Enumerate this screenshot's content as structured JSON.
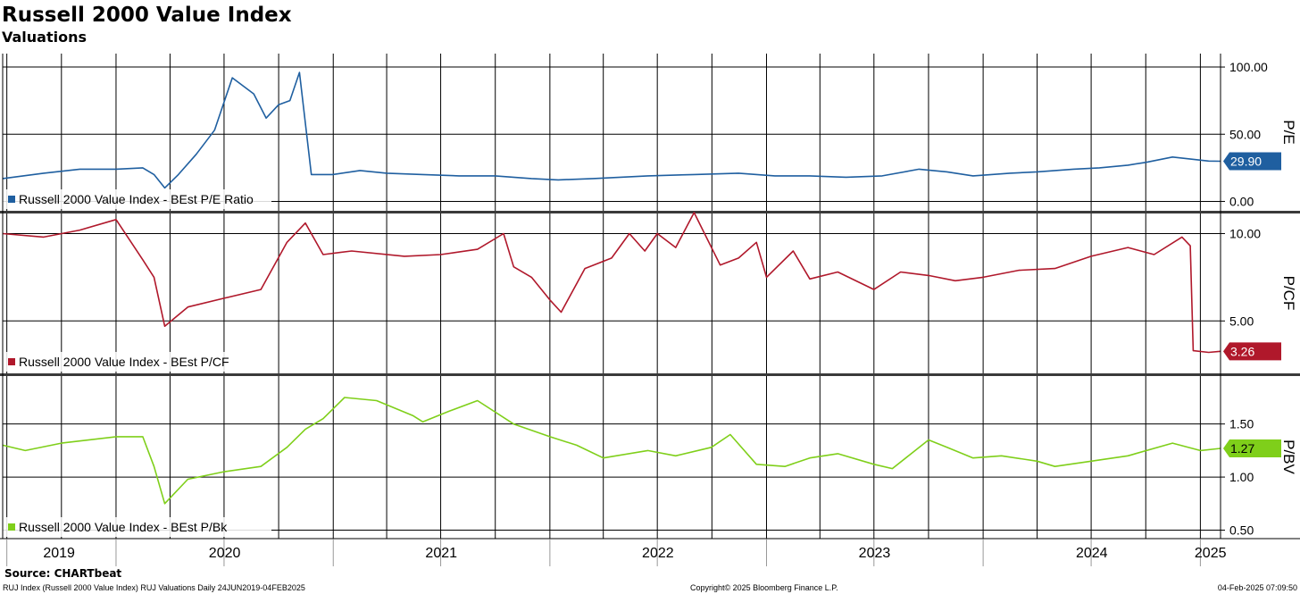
{
  "header": {
    "title": "Russell 2000 Value Index",
    "subtitle": "Valuations"
  },
  "footer": {
    "source": "Source: CHARTbeat",
    "left": "RUJ Index (Russell 2000 Value Index) RUJ Valuations  Daily 24JUN2019-04FEB2025",
    "center": "Copyright© 2025 Bloomberg Finance L.P.",
    "right": "04-Feb-2025 07:09:50"
  },
  "colors": {
    "pe": "#1f5fa0",
    "pcf": "#b0182b",
    "pbv": "#7fcf1a"
  },
  "chart_data": [
    {
      "type": "line",
      "ylabel": "P/E",
      "ylim": [
        -7,
        110
      ],
      "yticks": [
        "100.00",
        "50.00",
        "0.00"
      ],
      "ytick_values": [
        100,
        50,
        0
      ],
      "x_range": [
        "2019-06-24",
        "2025-02-04"
      ],
      "x_tick_labels": [
        "2019",
        "2020",
        "2021",
        "2022",
        "2023",
        "2024",
        "2025"
      ],
      "grid": true,
      "legend_position": "bottom-left",
      "series": [
        {
          "name": "Russell 2000 Value Index - BEst P/E Ratio",
          "last_value_label": "29.90",
          "x": [
            "2019-06-24",
            "2019-09-01",
            "2019-11-01",
            "2020-01-01",
            "2020-02-15",
            "2020-03-05",
            "2020-03-23",
            "2020-04-15",
            "2020-05-15",
            "2020-06-08",
            "2020-06-15",
            "2020-07-15",
            "2020-08-20",
            "2020-09-10",
            "2020-10-01",
            "2020-10-20",
            "2020-11-05",
            "2020-11-25",
            "2020-12-31",
            "2021-02-15",
            "2021-04-01",
            "2021-06-01",
            "2021-08-01",
            "2021-10-01",
            "2021-12-01",
            "2022-01-15",
            "2022-03-15",
            "2022-06-15",
            "2022-09-01",
            "2022-11-15",
            "2023-01-15",
            "2023-03-15",
            "2023-05-15",
            "2023-07-15",
            "2023-09-15",
            "2023-11-01",
            "2023-12-15",
            "2024-02-15",
            "2024-04-01",
            "2024-06-01",
            "2024-07-15",
            "2024-09-01",
            "2024-10-01",
            "2024-11-15",
            "2025-01-15",
            "2025-02-04"
          ],
          "values": [
            17,
            21,
            24,
            24,
            25,
            20,
            10,
            20,
            35,
            49,
            53,
            92,
            80,
            62,
            72,
            75,
            96,
            20,
            20,
            23,
            21,
            20,
            19,
            19,
            17,
            16,
            17,
            19,
            20,
            21,
            19,
            19,
            18,
            19,
            24,
            22,
            19,
            21,
            22,
            24,
            25,
            27,
            29,
            33,
            30,
            29.9
          ]
        }
      ]
    },
    {
      "type": "line",
      "ylabel": "P/CF",
      "ylim": [
        2,
        11.2
      ],
      "yticks": [
        "10.00",
        "5.00"
      ],
      "ytick_values": [
        10,
        5
      ],
      "x_range": [
        "2019-06-24",
        "2025-02-04"
      ],
      "x_tick_labels": [
        "2019",
        "2020",
        "2021",
        "2022",
        "2023",
        "2024",
        "2025"
      ],
      "grid": true,
      "legend_position": "bottom-left",
      "series": [
        {
          "name": "Russell 2000 Value Index - BEst P/CF",
          "last_value_label": "3.26",
          "x": [
            "2019-06-24",
            "2019-09-01",
            "2019-11-01",
            "2020-01-01",
            "2020-02-15",
            "2020-03-05",
            "2020-03-23",
            "2020-05-01",
            "2020-07-01",
            "2020-09-01",
            "2020-10-15",
            "2020-11-15",
            "2020-12-15",
            "2021-02-01",
            "2021-05-01",
            "2021-07-01",
            "2021-09-01",
            "2021-10-15",
            "2021-11-01",
            "2021-12-01",
            "2022-01-01",
            "2022-01-20",
            "2022-03-01",
            "2022-04-15",
            "2022-05-15",
            "2022-06-10",
            "2022-07-01",
            "2022-08-01",
            "2022-09-01",
            "2022-10-15",
            "2022-11-15",
            "2022-12-15",
            "2023-01-01",
            "2023-02-15",
            "2023-03-15",
            "2023-05-01",
            "2023-07-01",
            "2023-08-15",
            "2023-10-01",
            "2023-11-15",
            "2024-01-01",
            "2024-03-01",
            "2024-05-01",
            "2024-07-01",
            "2024-09-01",
            "2024-10-15",
            "2024-12-01",
            "2024-12-15",
            "2024-12-20",
            "2025-01-15",
            "2025-02-04"
          ],
          "values": [
            10,
            9.8,
            10.2,
            10.8,
            8.5,
            7.5,
            4.7,
            5.8,
            6.3,
            6.8,
            9.5,
            10.6,
            8.8,
            9,
            8.7,
            8.8,
            9.1,
            10,
            8.1,
            7.5,
            6.2,
            5.5,
            8,
            8.6,
            10,
            9,
            10,
            9.2,
            11.2,
            8.2,
            8.6,
            9.5,
            7.5,
            9,
            7.4,
            7.8,
            6.8,
            7.8,
            7.6,
            7.3,
            7.5,
            7.9,
            8,
            8.7,
            9.2,
            8.8,
            9.8,
            9.3,
            3.3,
            3.2,
            3.26
          ]
        }
      ]
    },
    {
      "type": "line",
      "ylabel": "P/BV",
      "ylim": [
        0.42,
        1.96
      ],
      "yticks": [
        "1.50",
        "1.00",
        "0.50"
      ],
      "ytick_values": [
        1.5,
        1.0,
        0.5
      ],
      "x_range": [
        "2019-06-24",
        "2025-02-04"
      ],
      "x_tick_labels": [
        "2019",
        "2020",
        "2021",
        "2022",
        "2023",
        "2024",
        "2025"
      ],
      "grid": true,
      "legend_position": "bottom-left",
      "series": [
        {
          "name": "Russell 2000 Value Index - BEst P/Bk",
          "last_value_label": "1.27",
          "x": [
            "2019-06-24",
            "2019-08-01",
            "2019-10-01",
            "2020-01-01",
            "2020-02-15",
            "2020-03-05",
            "2020-03-23",
            "2020-05-01",
            "2020-07-01",
            "2020-09-01",
            "2020-10-15",
            "2020-11-15",
            "2020-12-15",
            "2021-01-20",
            "2021-03-15",
            "2021-05-15",
            "2021-06-01",
            "2021-07-15",
            "2021-09-01",
            "2021-11-01",
            "2022-01-01",
            "2022-02-15",
            "2022-04-01",
            "2022-06-15",
            "2022-08-01",
            "2022-09-30",
            "2022-11-01",
            "2022-12-15",
            "2023-02-01",
            "2023-03-15",
            "2023-05-01",
            "2023-07-01",
            "2023-08-01",
            "2023-10-01",
            "2023-11-01",
            "2023-12-15",
            "2024-02-01",
            "2024-04-01",
            "2024-05-01",
            "2024-07-01",
            "2024-09-01",
            "2024-11-15",
            "2025-01-01",
            "2025-02-04"
          ],
          "values": [
            1.3,
            1.25,
            1.32,
            1.38,
            1.38,
            1.1,
            0.75,
            0.98,
            1.05,
            1.1,
            1.28,
            1.45,
            1.55,
            1.75,
            1.72,
            1.58,
            1.52,
            1.62,
            1.72,
            1.5,
            1.38,
            1.3,
            1.18,
            1.25,
            1.2,
            1.28,
            1.4,
            1.12,
            1.1,
            1.18,
            1.22,
            1.12,
            1.08,
            1.35,
            1.28,
            1.18,
            1.2,
            1.15,
            1.1,
            1.15,
            1.2,
            1.32,
            1.25,
            1.27
          ]
        }
      ]
    }
  ]
}
